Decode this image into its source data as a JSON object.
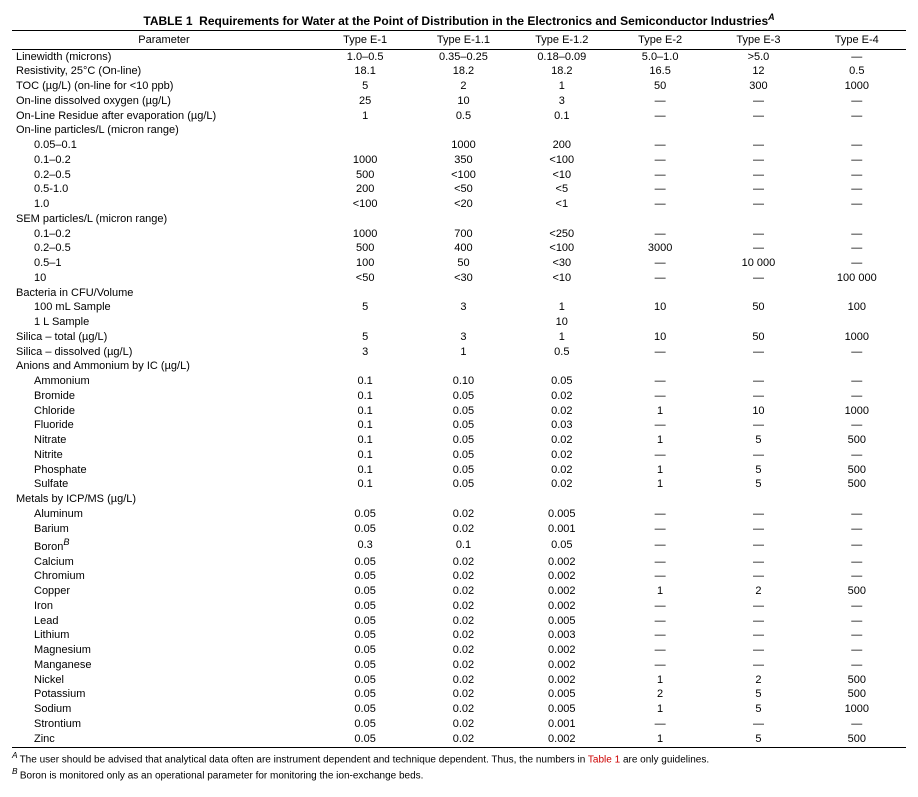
{
  "title_prefix": "TABLE 1",
  "title_text": "Requirements for Water at the Point of Distribution in the Electronics and Semiconductor Industries",
  "title_superscript": "A",
  "columns": [
    "Parameter",
    "Type E-1",
    "Type E-1.1",
    "Type E-1.2",
    "Type E-2",
    "Type E-3",
    "Type E-4"
  ],
  "rows": [
    {
      "label": "Linewidth (microns)",
      "vals": [
        "1.0–0.5",
        "0.35–0.25",
        "0.18–0.09",
        "5.0–1.0",
        ">5.0",
        "—"
      ]
    },
    {
      "label": "Resistivity, 25°C (On-line)",
      "vals": [
        "18.1",
        "18.2",
        "18.2",
        "16.5",
        "12",
        "0.5"
      ]
    },
    {
      "label": "TOC (µg/L) (on-line for <10 ppb)",
      "vals": [
        "5",
        "2",
        "1",
        "50",
        "300",
        "1000"
      ]
    },
    {
      "label": "On-line dissolved oxygen (µg/L)",
      "vals": [
        "25",
        "10",
        "3",
        "—",
        "—",
        "—"
      ]
    },
    {
      "label": "On-Line Residue after evaporation (µg/L)",
      "vals": [
        "1",
        "0.5",
        "0.1",
        "—",
        "—",
        "—"
      ]
    },
    {
      "label": "On-line particles/L (micron range)",
      "vals": [
        "",
        "",
        "",
        "",
        "",
        ""
      ]
    },
    {
      "label": "0.05–0.1",
      "indent": 1,
      "vals": [
        "",
        "1000",
        "200",
        "—",
        "—",
        "—"
      ]
    },
    {
      "label": "0.1–0.2",
      "indent": 1,
      "vals": [
        "1000",
        "350",
        "<100",
        "—",
        "—",
        "—"
      ]
    },
    {
      "label": "0.2–0.5",
      "indent": 1,
      "vals": [
        "500",
        "<100",
        "<10",
        "—",
        "—",
        "—"
      ]
    },
    {
      "label": "0.5-1.0",
      "indent": 1,
      "vals": [
        "200",
        "<50",
        "<5",
        "—",
        "—",
        "—"
      ]
    },
    {
      "label": "1.0",
      "indent": 1,
      "vals": [
        "<100",
        "<20",
        "<1",
        "—",
        "—",
        "—"
      ]
    },
    {
      "label": "SEM particles/L (micron range)",
      "vals": [
        "",
        "",
        "",
        "",
        "",
        ""
      ]
    },
    {
      "label": "0.1–0.2",
      "indent": 1,
      "vals": [
        "1000",
        "700",
        "<250",
        "—",
        "—",
        "—"
      ]
    },
    {
      "label": "0.2–0.5",
      "indent": 1,
      "vals": [
        "500",
        "400",
        "<100",
        "3000",
        "—",
        "—"
      ]
    },
    {
      "label": "0.5–1",
      "indent": 1,
      "vals": [
        "100",
        "50",
        "<30",
        "—",
        "10 000",
        "—"
      ]
    },
    {
      "label": "10",
      "indent": 1,
      "vals": [
        "<50",
        "<30",
        "<10",
        "—",
        "—",
        "100 000"
      ]
    },
    {
      "label": "Bacteria in CFU/Volume",
      "vals": [
        "",
        "",
        "",
        "",
        "",
        ""
      ]
    },
    {
      "label": "100 mL Sample",
      "indent": 1,
      "vals": [
        "5",
        "3",
        "1",
        "10",
        "50",
        "100"
      ]
    },
    {
      "label": "1 L Sample",
      "indent": 1,
      "vals": [
        "",
        "",
        "10",
        "",
        "",
        ""
      ]
    },
    {
      "label": "Silica – total (µg/L)",
      "vals": [
        "5",
        "3",
        "1",
        "10",
        "50",
        "1000"
      ]
    },
    {
      "label": "Silica – dissolved (µg/L)",
      "vals": [
        "3",
        "1",
        "0.5",
        "—",
        "—",
        "—"
      ]
    },
    {
      "label": "Anions and Ammonium by IC (µg/L)",
      "vals": [
        "",
        "",
        "",
        "",
        "",
        ""
      ]
    },
    {
      "label": "Ammonium",
      "indent": 1,
      "vals": [
        "0.1",
        "0.10",
        "0.05",
        "—",
        "—",
        "—"
      ]
    },
    {
      "label": "Bromide",
      "indent": 1,
      "vals": [
        "0.1",
        "0.05",
        "0.02",
        "—",
        "—",
        "—"
      ]
    },
    {
      "label": "Chloride",
      "indent": 1,
      "vals": [
        "0.1",
        "0.05",
        "0.02",
        "1",
        "10",
        "1000"
      ]
    },
    {
      "label": "Fluoride",
      "indent": 1,
      "vals": [
        "0.1",
        "0.05",
        "0.03",
        "—",
        "—",
        "—"
      ]
    },
    {
      "label": "Nitrate",
      "indent": 1,
      "vals": [
        "0.1",
        "0.05",
        "0.02",
        "1",
        "5",
        "500"
      ]
    },
    {
      "label": "Nitrite",
      "indent": 1,
      "vals": [
        "0.1",
        "0.05",
        "0.02",
        "—",
        "—",
        "—"
      ]
    },
    {
      "label": "Phosphate",
      "indent": 1,
      "vals": [
        "0.1",
        "0.05",
        "0.02",
        "1",
        "5",
        "500"
      ]
    },
    {
      "label": "Sulfate",
      "indent": 1,
      "vals": [
        "0.1",
        "0.05",
        "0.02",
        "1",
        "5",
        "500"
      ]
    },
    {
      "label": "Metals by ICP/MS (µg/L)",
      "vals": [
        "",
        "",
        "",
        "",
        "",
        ""
      ]
    },
    {
      "label": "Aluminum",
      "indent": 1,
      "vals": [
        "0.05",
        "0.02",
        "0.005",
        "—",
        "—",
        "—"
      ]
    },
    {
      "label": "Barium",
      "indent": 1,
      "vals": [
        "0.05",
        "0.02",
        "0.001",
        "—",
        "—",
        "—"
      ]
    },
    {
      "label": "Boron",
      "sup": "B",
      "indent": 1,
      "vals": [
        "0.3",
        "0.1",
        "0.05",
        "—",
        "—",
        "—"
      ]
    },
    {
      "label": "Calcium",
      "indent": 1,
      "vals": [
        "0.05",
        "0.02",
        "0.002",
        "—",
        "—",
        "—"
      ]
    },
    {
      "label": "Chromium",
      "indent": 1,
      "vals": [
        "0.05",
        "0.02",
        "0.002",
        "—",
        "—",
        "—"
      ]
    },
    {
      "label": "Copper",
      "indent": 1,
      "vals": [
        "0.05",
        "0.02",
        "0.002",
        "1",
        "2",
        "500"
      ]
    },
    {
      "label": "Iron",
      "indent": 1,
      "vals": [
        "0.05",
        "0.02",
        "0.002",
        "—",
        "—",
        "—"
      ]
    },
    {
      "label": "Lead",
      "indent": 1,
      "vals": [
        "0.05",
        "0.02",
        "0.005",
        "—",
        "—",
        "—"
      ]
    },
    {
      "label": "Lithium",
      "indent": 1,
      "vals": [
        "0.05",
        "0.02",
        "0.003",
        "—",
        "—",
        "—"
      ]
    },
    {
      "label": "Magnesium",
      "indent": 1,
      "vals": [
        "0.05",
        "0.02",
        "0.002",
        "—",
        "—",
        "—"
      ]
    },
    {
      "label": "Manganese",
      "indent": 1,
      "vals": [
        "0.05",
        "0.02",
        "0.002",
        "—",
        "—",
        "—"
      ]
    },
    {
      "label": "Nickel",
      "indent": 1,
      "vals": [
        "0.05",
        "0.02",
        "0.002",
        "1",
        "2",
        "500"
      ]
    },
    {
      "label": "Potassium",
      "indent": 1,
      "vals": [
        "0.05",
        "0.02",
        "0.005",
        "2",
        "5",
        "500"
      ]
    },
    {
      "label": "Sodium",
      "indent": 1,
      "vals": [
        "0.05",
        "0.02",
        "0.005",
        "1",
        "5",
        "1000"
      ]
    },
    {
      "label": "Strontium",
      "indent": 1,
      "vals": [
        "0.05",
        "0.02",
        "0.001",
        "—",
        "—",
        "—"
      ]
    },
    {
      "label": "Zinc",
      "indent": 1,
      "vals": [
        "0.05",
        "0.02",
        "0.002",
        "1",
        "5",
        "500"
      ]
    }
  ],
  "footnotes": [
    {
      "mark": "A",
      "pre": "The user should be advised that analytical data often are instrument dependent and technique dependent. Thus, the numbers in ",
      "link": "Table 1",
      "post": " are only guidelines."
    },
    {
      "mark": "B",
      "pre": "Boron is monitored only as an operational parameter for monitoring the ion-exchange beds.",
      "link": "",
      "post": ""
    }
  ]
}
